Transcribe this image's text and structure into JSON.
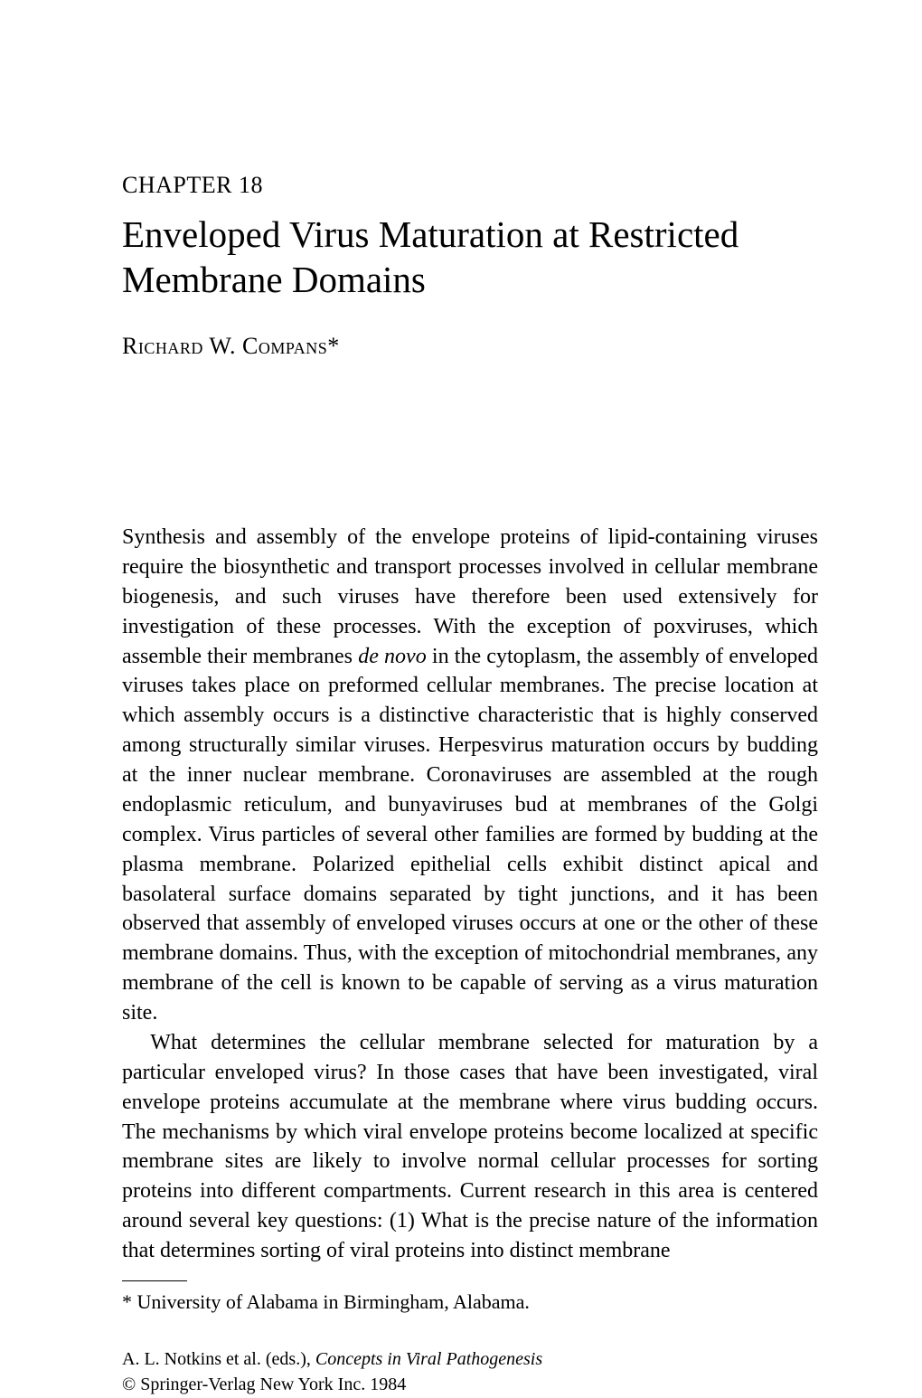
{
  "chapter": {
    "label": "CHAPTER 18",
    "title": "Enveloped Virus Maturation at Restricted Membrane Domains",
    "author": "Richard W. Compans*"
  },
  "body": {
    "para1_before_italic": "Synthesis and assembly of the envelope proteins of lipid-containing viruses require the biosynthetic and transport processes involved in cellular membrane biogenesis, and such viruses have therefore been used extensively for investigation of these processes. With the exception of poxviruses, which assemble their membranes ",
    "para1_italic": "de novo",
    "para1_after_italic": " in the cytoplasm, the assembly of enveloped viruses takes place on preformed cellular membranes. The precise location at which assembly occurs is a distinctive characteristic that is highly conserved among structurally similar viruses. Herpesvirus maturation occurs by budding at the inner nuclear membrane. Coronaviruses are assembled at the rough endoplasmic reticulum, and bunyaviruses bud at membranes of the Golgi complex. Virus particles of several other families are formed by budding at the plasma membrane. Polarized epithelial cells exhibit distinct apical and basolateral surface domains separated by tight junctions, and it has been observed that assembly of enveloped viruses occurs at one or the other of these membrane domains. Thus, with the exception of mitochondrial membranes, any membrane of the cell is known to be capable of serving as a virus maturation site.",
    "para2": "What determines the cellular membrane selected for maturation by a particular enveloped virus? In those cases that have been investigated, viral envelope proteins accumulate at the membrane where virus budding occurs. The mechanisms by which viral envelope proteins become localized at specific membrane sites are likely to involve normal cellular processes for sorting proteins into different compartments. Current research in this area is centered around several key questions: (1) What is the precise nature of the information that determines sorting of viral proteins into distinct membrane"
  },
  "footnote": "* University of Alabama in Birmingham, Alabama.",
  "citation": {
    "line1_before_italic": "A. L. Notkins et al. (eds.), ",
    "line1_italic": "Concepts in Viral Pathogenesis",
    "line2": "© Springer-Verlag New York Inc. 1984"
  }
}
